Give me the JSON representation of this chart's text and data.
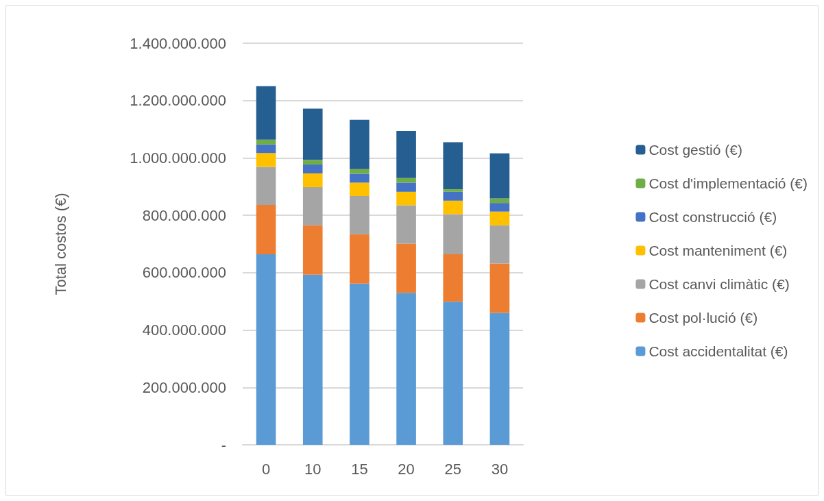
{
  "chart_data": {
    "type": "bar",
    "stacked": true,
    "ylabel": "Total costos (€)",
    "categories": [
      "0",
      "10",
      "15",
      "20",
      "25",
      "30"
    ],
    "series": [
      {
        "name": "Cost accidentalitat (€)",
        "color": "#5b9bd5",
        "values": [
          664000000,
          593000000,
          562000000,
          530000000,
          499000000,
          460000000
        ]
      },
      {
        "name": "Cost pol·lució (€)",
        "color": "#ed7d31",
        "values": [
          172000000,
          172000000,
          172000000,
          171000000,
          165000000,
          172000000
        ]
      },
      {
        "name": "Cost canvi climàtic (€)",
        "color": "#a5a5a5",
        "values": [
          133000000,
          133000000,
          133000000,
          134000000,
          140000000,
          133000000
        ]
      },
      {
        "name": "Cost manteniment (€)",
        "color": "#ffc000",
        "values": [
          48000000,
          48000000,
          47000000,
          47000000,
          47000000,
          48000000
        ]
      },
      {
        "name": "Cost construcció (€)",
        "color": "#4472c4",
        "values": [
          30000000,
          31000000,
          31000000,
          32000000,
          31000000,
          30000000
        ]
      },
      {
        "name": "Cost d'implementació (€)",
        "color": "#70ad47",
        "values": [
          17000000,
          16000000,
          16000000,
          16000000,
          9000000,
          16000000
        ]
      },
      {
        "name": "Cost gestió (€)",
        "color": "#255e91",
        "values": [
          186000000,
          179000000,
          172000000,
          164000000,
          164000000,
          157000000
        ]
      }
    ],
    "ylim": [
      0,
      1400000000
    ],
    "yticks": [
      {
        "value": 0,
        "label": "-"
      },
      {
        "value": 200000000,
        "label": "200.000.000"
      },
      {
        "value": 400000000,
        "label": "400.000.000"
      },
      {
        "value": 600000000,
        "label": "600.000.000"
      },
      {
        "value": 800000000,
        "label": "800.000.000"
      },
      {
        "value": 1000000000,
        "label": "1.000.000.000"
      },
      {
        "value": 1200000000,
        "label": "1.200.000.000"
      },
      {
        "value": 1400000000,
        "label": "1.400.000.000"
      }
    ],
    "grid": "y",
    "legend": "right"
  }
}
